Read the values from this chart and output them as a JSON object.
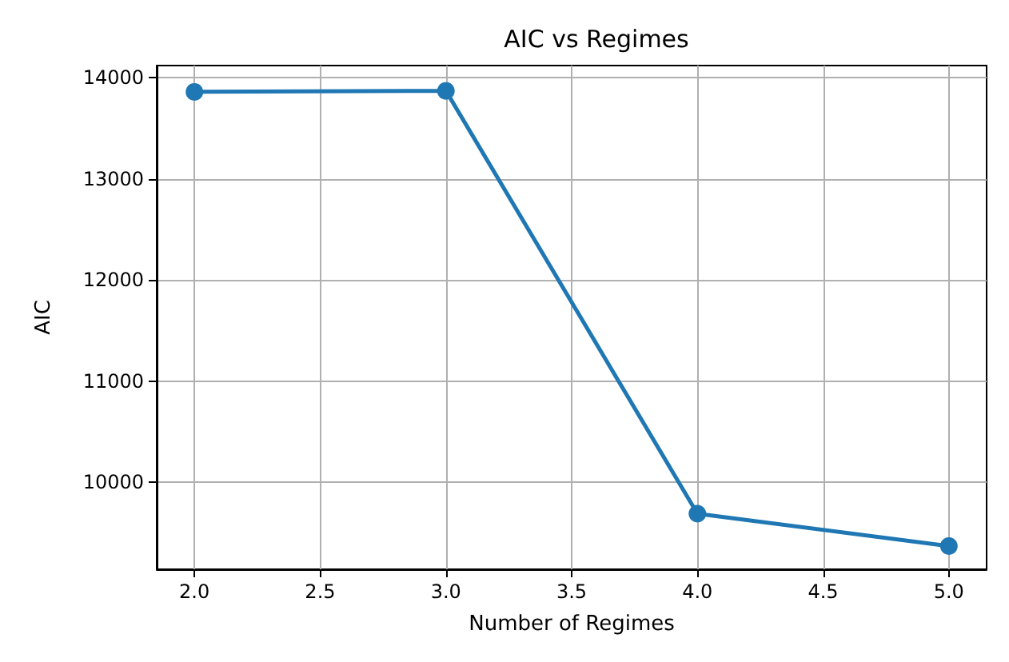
{
  "chart_data": {
    "type": "line",
    "title": "AIC vs Regimes",
    "xlabel": "Number of Regimes",
    "ylabel": "AIC",
    "x": [
      2,
      3,
      4,
      5
    ],
    "series": [
      {
        "color": "#1f77b4",
        "values": [
          13860,
          13870,
          9690,
          9370
        ]
      }
    ],
    "xlim": [
      1.85,
      5.15
    ],
    "xticks": [
      {
        "value": 2,
        "label": "2.0"
      },
      {
        "value": 2.5,
        "label": "2.5"
      },
      {
        "value": 3,
        "label": "3.0"
      },
      {
        "value": 3.5,
        "label": "3.5"
      },
      {
        "value": 4,
        "label": "4.0"
      },
      {
        "value": 4.5,
        "label": "4.5"
      },
      {
        "value": 5,
        "label": "5.0"
      }
    ],
    "ylim": [
      9140,
      14120
    ],
    "yticks": [
      10000,
      11000,
      12000,
      13000,
      14000
    ],
    "grid": true,
    "marker": "circle",
    "line_style": "solid"
  }
}
